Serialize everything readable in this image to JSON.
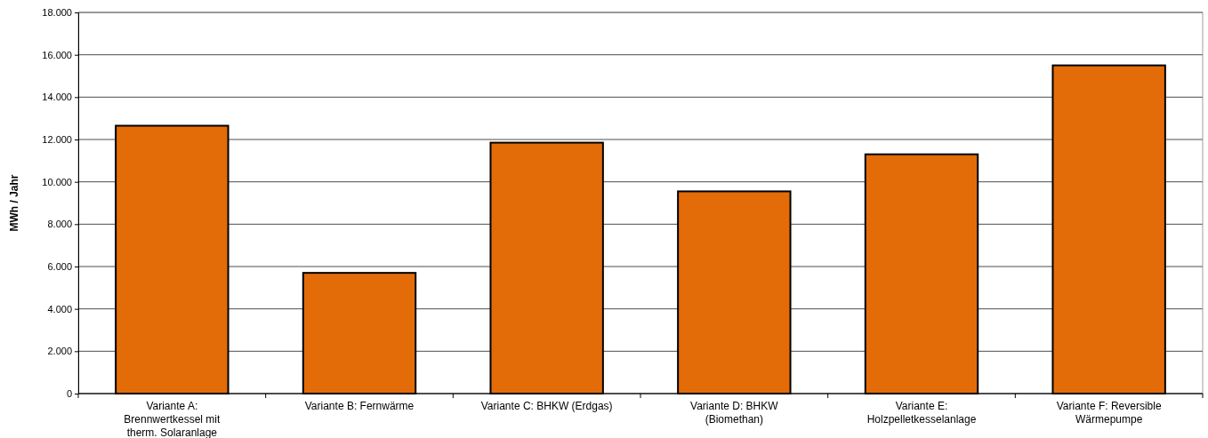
{
  "chart_data": {
    "type": "bar",
    "ylabel": "MWh / Jahr",
    "categories": [
      "Variante A: Brennwertkessel mit therm. Solaranlage",
      "Variante B: Fernwärme",
      "Variante C: BHKW (Erdgas)",
      "Variante D: BHKW (Biomethan)",
      "Variante E: Holzpelletkesselanlage",
      "Variante F: Reversible Wärmepumpe"
    ],
    "values": [
      12650,
      5700,
      11850,
      9550,
      11300,
      15500
    ],
    "color": "#e36c09",
    "ylim": [
      0,
      18000
    ],
    "yticks": [
      0,
      {
        "value": 2000,
        "label": "2.000"
      },
      {
        "value": 4000,
        "label": "4.000"
      },
      {
        "value": 6000,
        "label": "6.000"
      },
      {
        "value": 8000,
        "label": "8.000"
      },
      {
        "value": 10000,
        "label": "10.000"
      },
      {
        "value": 12000,
        "label": "12.000"
      },
      {
        "value": 14000,
        "label": "14.000"
      },
      {
        "value": 16000,
        "label": "16.000"
      },
      {
        "value": 18000,
        "label": "18.000"
      }
    ],
    "grid": "y"
  }
}
